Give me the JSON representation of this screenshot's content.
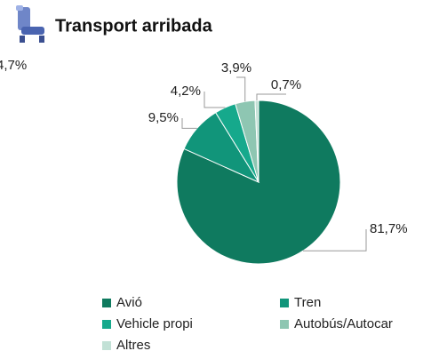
{
  "chart_data": {
    "type": "pie",
    "title": "Transport arribada",
    "annotations": [
      "4,7%"
    ],
    "categories": [
      "Avió",
      "Tren",
      "Vehicle propi",
      "Autobús/Autocar",
      "Altres"
    ],
    "values": [
      81.7,
      9.5,
      4.2,
      3.9,
      0.7
    ],
    "value_labels": [
      "81,7%",
      "9,5%",
      "4,2%",
      "3,9%",
      "0,7%"
    ],
    "colors": [
      "#0f7a5f",
      "#11957a",
      "#16a98c",
      "#8ec6b2",
      "#c2e1d6"
    ],
    "legend": "bottom"
  }
}
